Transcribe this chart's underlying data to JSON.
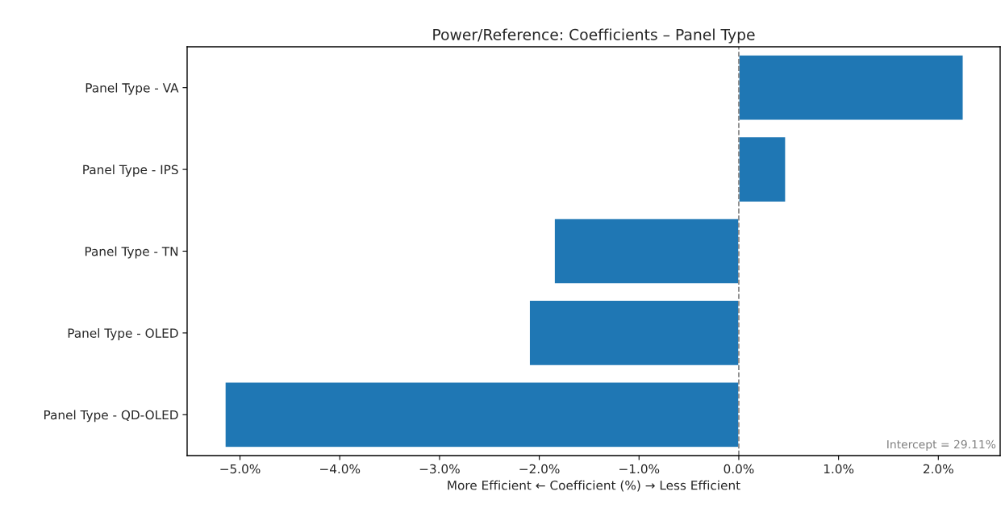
{
  "chart_data": {
    "type": "bar",
    "orientation": "horizontal",
    "title": "Power/Reference: Coefficients – Panel Type",
    "xlabel": "More Efficient ← Coefficient (%) → Less Efficient",
    "categories": [
      "Panel Type - VA",
      "Panel Type - IPS",
      "Panel Type - TN",
      "Panel Type - OLED",
      "Panel Type - QD-OLED"
    ],
    "values": [
      2.25,
      0.47,
      -1.85,
      -2.1,
      -5.15
    ],
    "color": "#1f77b4",
    "xlim": [
      -5.53,
      2.62
    ],
    "xticks": [
      {
        "value": -5,
        "label": "−5.0%"
      },
      {
        "value": -4,
        "label": "−4.0%"
      },
      {
        "value": -3,
        "label": "−3.0%"
      },
      {
        "value": -2,
        "label": "−2.0%"
      },
      {
        "value": -1,
        "label": "−1.0%"
      },
      {
        "value": 0,
        "label": "0.0%"
      },
      {
        "value": 1,
        "label": "1.0%"
      },
      {
        "value": 2,
        "label": "2.0%"
      }
    ],
    "ref_lines": [
      {
        "axis": "x",
        "value": 0,
        "color": "#808080",
        "line_style": "dashed"
      }
    ],
    "annotations": [
      "Intercept = 29.11%"
    ],
    "grid": false
  }
}
